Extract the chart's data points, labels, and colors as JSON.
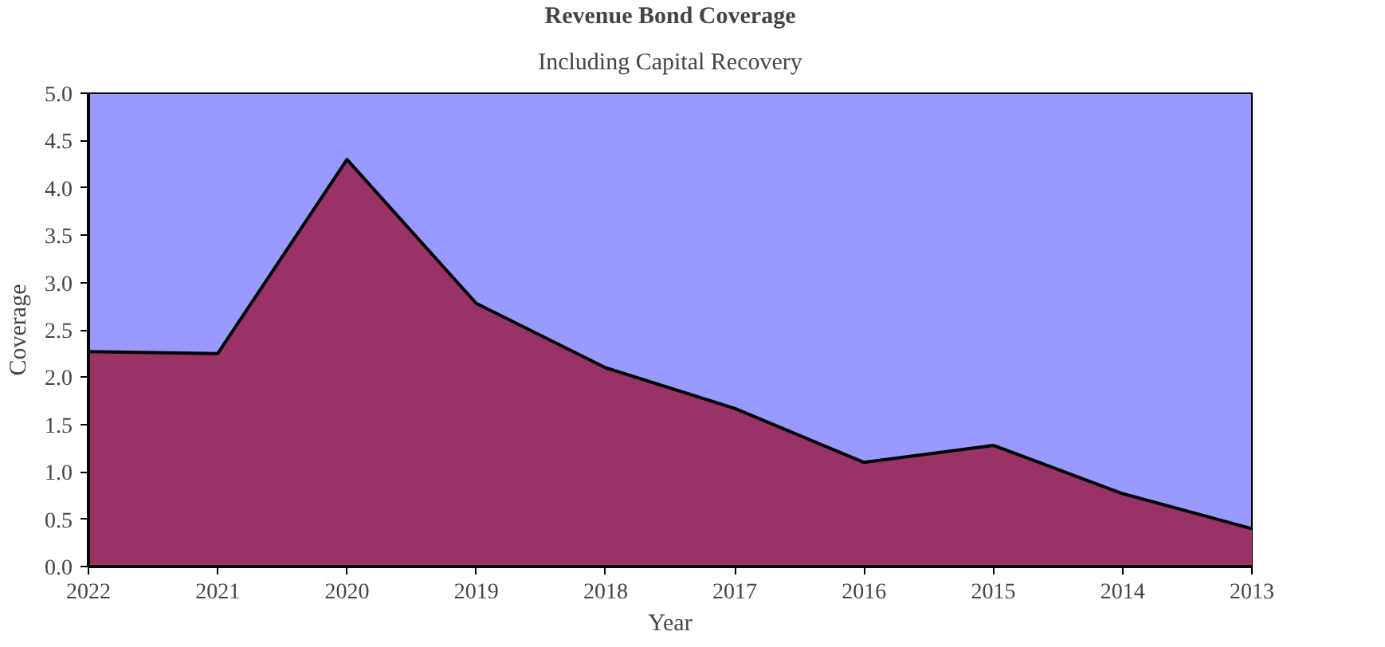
{
  "chart_data": {
    "type": "area",
    "title": "Revenue Bond Coverage",
    "subtitle": "Including Capital Recovery",
    "xlabel": "Year",
    "ylabel": "Coverage",
    "categories": [
      "2022",
      "2021",
      "2020",
      "2019",
      "2018",
      "2017",
      "2016",
      "2015",
      "2014",
      "2013"
    ],
    "series": [
      {
        "color": "#993366",
        "values": [
          2.27,
          2.25,
          4.3,
          2.78,
          2.1,
          1.67,
          1.1,
          1.28,
          0.77,
          0.4
        ]
      }
    ],
    "ylim": [
      0,
      5
    ],
    "yticks": [
      {
        "value": 0,
        "label": "0.0"
      },
      {
        "value": 0.5,
        "label": "0.5"
      },
      {
        "value": 1,
        "label": "1.0"
      },
      {
        "value": 1.5,
        "label": "1.5"
      },
      {
        "value": 2,
        "label": "2.0"
      },
      {
        "value": 2.5,
        "label": "2.5"
      },
      {
        "value": 3,
        "label": "3.0"
      },
      {
        "value": 3.5,
        "label": "3.5"
      },
      {
        "value": 4,
        "label": "4.0"
      },
      {
        "value": 4.5,
        "label": "4.5"
      },
      {
        "value": 5,
        "label": "5.0"
      }
    ],
    "grid": false
  }
}
